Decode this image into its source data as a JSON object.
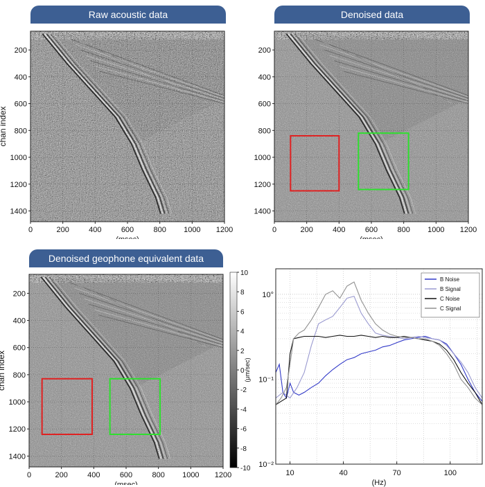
{
  "chart_data": [
    {
      "type": "heatmap",
      "title": "Raw acoustic data",
      "xlabel": "(msec)",
      "ylabel": "chan index",
      "xlim": [
        0,
        1200
      ],
      "ylim": [
        1480,
        60
      ],
      "xticks": [
        "0",
        "200",
        "400",
        "600",
        "800",
        "1000",
        "1200"
      ],
      "yticks": [
        "200",
        "400",
        "600",
        "800",
        "1000",
        "1200",
        "1400"
      ],
      "arrival_curve": {
        "x": [
          100,
          250,
          400,
          550,
          650,
          720,
          800,
          830
        ],
        "y": [
          80,
          300,
          500,
          700,
          900,
          1100,
          1300,
          1420
        ]
      }
    },
    {
      "type": "heatmap",
      "title": "Denoised data",
      "xlabel": "(msec)",
      "ylabel": "",
      "xlim": [
        0,
        1200
      ],
      "ylim": [
        1480,
        60
      ],
      "xticks": [
        "0",
        "200",
        "400",
        "600",
        "800",
        "1000",
        "1200"
      ],
      "yticks": [
        "200",
        "400",
        "600",
        "800",
        "1000",
        "1200",
        "1400"
      ],
      "arrival_curve": {
        "x": [
          100,
          250,
          400,
          550,
          650,
          720,
          800,
          830
        ],
        "y": [
          80,
          300,
          500,
          700,
          900,
          1100,
          1300,
          1420
        ]
      },
      "boxes": [
        {
          "color": "#e02020",
          "x0": 100,
          "x1": 400,
          "y0": 840,
          "y1": 1250
        },
        {
          "color": "#2ee02e",
          "x0": 520,
          "x1": 830,
          "y0": 820,
          "y1": 1240
        }
      ]
    },
    {
      "type": "heatmap",
      "title": "Denoised geophone equivalent data",
      "xlabel": "(msec)",
      "ylabel": "chan index",
      "xlim": [
        0,
        1200
      ],
      "ylim": [
        1480,
        60
      ],
      "xticks": [
        "0",
        "200",
        "400",
        "600",
        "800",
        "1000",
        "1200"
      ],
      "yticks": [
        "200",
        "400",
        "600",
        "800",
        "1000",
        "1200",
        "1400"
      ],
      "arrival_curve": {
        "x": [
          100,
          250,
          400,
          550,
          650,
          720,
          800,
          830
        ],
        "y": [
          80,
          300,
          500,
          700,
          900,
          1100,
          1300,
          1420
        ]
      },
      "boxes": [
        {
          "color": "#e02020",
          "x0": 80,
          "x1": 390,
          "y0": 830,
          "y1": 1240
        },
        {
          "color": "#2ee02e",
          "x0": 500,
          "x1": 810,
          "y0": 830,
          "y1": 1240
        }
      ],
      "colorbar": {
        "label": "(μm/sec)",
        "range": [
          -10,
          10
        ],
        "ticks": [
          "10",
          "8",
          "6",
          "4",
          "2",
          "0",
          "-2",
          "-4",
          "-6",
          "-8",
          "-10"
        ]
      }
    },
    {
      "type": "line",
      "xlabel": "(Hz)",
      "ylabel": "",
      "y_scale": "log",
      "xlim": [
        2,
        118
      ],
      "ylim": [
        0.01,
        2
      ],
      "xticks": [
        10,
        40,
        70,
        100
      ],
      "yticks": [
        "10°",
        "10⁻¹",
        "10⁻²"
      ],
      "grid": true,
      "legend_position": "top-right",
      "series": [
        {
          "name": "B Noise",
          "color": "#3038c8",
          "x": [
            2,
            4,
            6,
            8,
            10,
            12,
            15,
            18,
            22,
            26,
            30,
            34,
            38,
            42,
            46,
            50,
            54,
            58,
            62,
            66,
            70,
            74,
            78,
            82,
            86,
            90,
            94,
            98,
            102,
            106,
            110,
            114,
            118
          ],
          "y": [
            0.12,
            0.15,
            0.07,
            0.06,
            0.09,
            0.07,
            0.065,
            0.07,
            0.08,
            0.09,
            0.11,
            0.13,
            0.15,
            0.17,
            0.18,
            0.2,
            0.21,
            0.22,
            0.24,
            0.25,
            0.27,
            0.29,
            0.3,
            0.31,
            0.32,
            0.3,
            0.29,
            0.26,
            0.2,
            0.15,
            0.1,
            0.07,
            0.055
          ]
        },
        {
          "name": "B Signal",
          "color": "#9a9ad0",
          "x": [
            2,
            6,
            10,
            14,
            18,
            22,
            26,
            30,
            34,
            38,
            42,
            46,
            50,
            54,
            58,
            62,
            66,
            70,
            74,
            78,
            82,
            86,
            90,
            94,
            98,
            102,
            106,
            110,
            114,
            118
          ],
          "y": [
            0.06,
            0.07,
            0.06,
            0.08,
            0.12,
            0.25,
            0.45,
            0.5,
            0.55,
            0.7,
            0.9,
            0.95,
            0.6,
            0.45,
            0.35,
            0.33,
            0.32,
            0.31,
            0.3,
            0.31,
            0.32,
            0.31,
            0.3,
            0.29,
            0.25,
            0.2,
            0.16,
            0.12,
            0.08,
            0.06
          ]
        },
        {
          "name": "C Noise",
          "color": "#111111",
          "x": [
            2,
            5,
            8,
            10,
            12,
            15,
            18,
            22,
            26,
            30,
            34,
            38,
            42,
            46,
            50,
            54,
            58,
            62,
            66,
            70,
            74,
            78,
            82,
            86,
            90,
            94,
            98,
            102,
            106,
            110,
            114,
            118
          ],
          "y": [
            0.05,
            0.055,
            0.06,
            0.2,
            0.3,
            0.31,
            0.32,
            0.32,
            0.32,
            0.31,
            0.32,
            0.33,
            0.32,
            0.32,
            0.33,
            0.32,
            0.31,
            0.32,
            0.31,
            0.31,
            0.32,
            0.31,
            0.3,
            0.29,
            0.28,
            0.26,
            0.22,
            0.17,
            0.12,
            0.09,
            0.07,
            0.05
          ]
        },
        {
          "name": "C Signal",
          "color": "#909090",
          "x": [
            2,
            5,
            8,
            10,
            12,
            15,
            18,
            22,
            26,
            30,
            34,
            38,
            42,
            46,
            50,
            54,
            58,
            62,
            66,
            70,
            74,
            78,
            82,
            86,
            90,
            94,
            98,
            102,
            106,
            110,
            114,
            118
          ],
          "y": [
            0.05,
            0.06,
            0.08,
            0.15,
            0.3,
            0.35,
            0.38,
            0.5,
            0.7,
            1.0,
            1.1,
            0.9,
            1.25,
            1.4,
            0.85,
            0.6,
            0.45,
            0.38,
            0.34,
            0.32,
            0.31,
            0.31,
            0.3,
            0.3,
            0.28,
            0.25,
            0.2,
            0.15,
            0.1,
            0.08,
            0.06,
            0.05
          ]
        }
      ]
    }
  ]
}
